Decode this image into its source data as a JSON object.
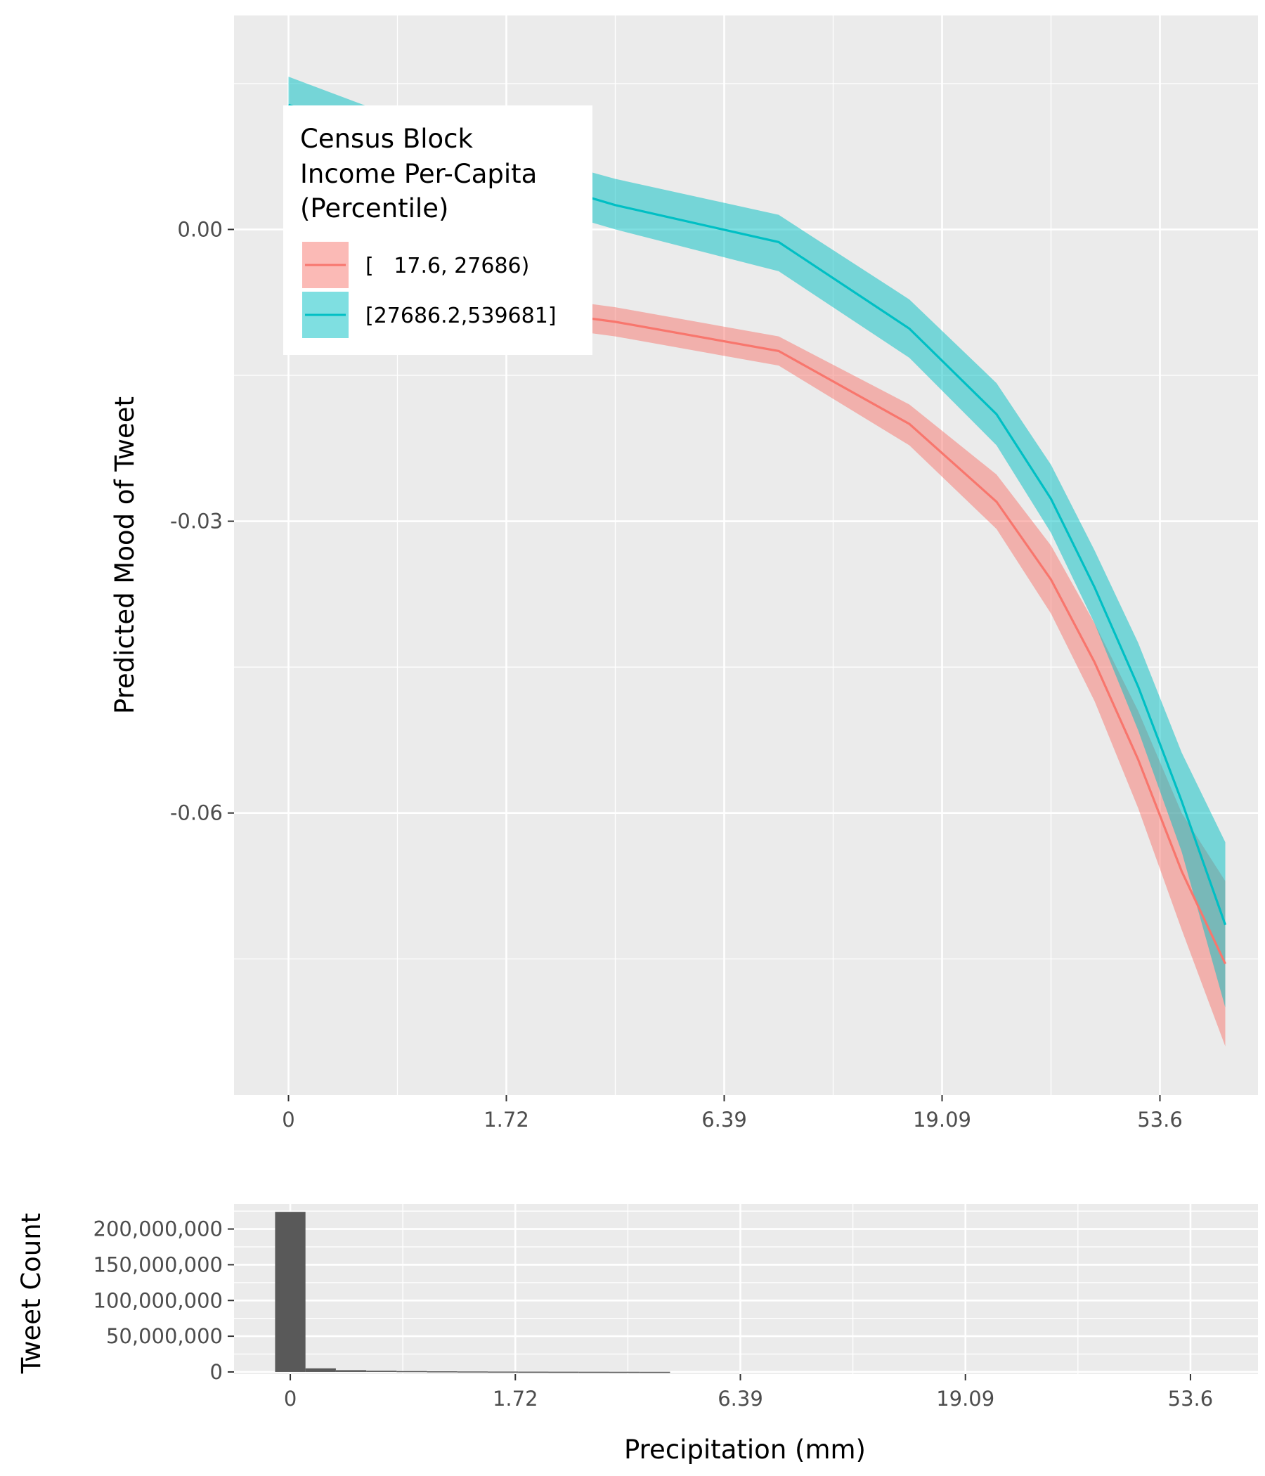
{
  "chart_data": [
    {
      "type": "line",
      "panel": "main",
      "ylabel": "Predicted Mood of Tweet",
      "xlabel": "",
      "x_ticks": [
        "0",
        "1.72",
        "6.39",
        "19.09",
        "53.6"
      ],
      "y_ticks": [
        "0.00",
        "-0.03",
        "-0.06"
      ],
      "ylim": [
        -0.089,
        0.022
      ],
      "xlim": [
        -0.5,
        8.9
      ],
      "grid": true,
      "legend": {
        "title_lines": [
          "Census Block",
          "Income Per-Capita",
          "(Percentile)"
        ],
        "placement": "top-left"
      },
      "x": [
        0,
        1,
        2,
        3,
        4.5,
        5.7,
        6.5,
        7.0,
        7.4,
        7.8,
        8.2,
        8.6
      ],
      "series": [
        {
          "name": "[   17.6, 27686)",
          "color": "#F8766D",
          "fill": "#F8766D",
          "values": [
            0.0,
            -0.0055,
            -0.008,
            -0.0095,
            -0.0125,
            -0.02,
            -0.028,
            -0.036,
            -0.0445,
            -0.0545,
            -0.066,
            -0.0755
          ],
          "lower": [
            -0.0015,
            -0.007,
            -0.0095,
            -0.011,
            -0.014,
            -0.0222,
            -0.0308,
            -0.0395,
            -0.0485,
            -0.0595,
            -0.072,
            -0.084
          ],
          "upper": [
            0.0015,
            -0.004,
            -0.0065,
            -0.008,
            -0.011,
            -0.018,
            -0.0252,
            -0.0325,
            -0.0405,
            -0.0495,
            -0.06,
            -0.067
          ]
        },
        {
          "name": "[27686.2,539681]",
          "color": "#00BFC4",
          "fill": "#00BFC4",
          "values": [
            0.0128,
            0.009,
            0.0058,
            0.0025,
            -0.0013,
            -0.0102,
            -0.019,
            -0.0277,
            -0.0368,
            -0.047,
            -0.0588,
            -0.0715
          ],
          "lower": [
            0.01,
            0.0065,
            0.0033,
            0.0,
            -0.0043,
            -0.0132,
            -0.0222,
            -0.0312,
            -0.0405,
            -0.0515,
            -0.064,
            -0.08
          ],
          "upper": [
            0.0157,
            0.0115,
            0.0083,
            0.0052,
            0.0015,
            -0.0072,
            -0.0158,
            -0.0242,
            -0.033,
            -0.0425,
            -0.0538,
            -0.063
          ]
        }
      ]
    },
    {
      "type": "bar",
      "panel": "histogram",
      "ylabel": "Tweet Count",
      "xlabel": "Precipitation (mm)",
      "x_ticks": [
        "0",
        "1.72",
        "6.39",
        "19.09",
        "53.6"
      ],
      "y_ticks": [
        "200,000,000",
        "150,000,000",
        "100,000,000",
        "50,000,000",
        "0"
      ],
      "y_tick_values": [
        200000000,
        150000000,
        100000000,
        50000000,
        0
      ],
      "ylim": [
        -3000000,
        235000000
      ],
      "xlim": [
        -0.5,
        8.6
      ],
      "grid": true,
      "bar_color": "#595959",
      "bins": [
        {
          "x": 0.0,
          "value": 224000000
        },
        {
          "x": 0.27,
          "value": 5000000
        },
        {
          "x": 0.54,
          "value": 2500000
        },
        {
          "x": 0.81,
          "value": 1700000
        },
        {
          "x": 1.08,
          "value": 1200000
        },
        {
          "x": 1.35,
          "value": 900000
        },
        {
          "x": 1.62,
          "value": 700000
        },
        {
          "x": 1.89,
          "value": 550000
        },
        {
          "x": 2.16,
          "value": 450000
        },
        {
          "x": 2.43,
          "value": 380000
        },
        {
          "x": 2.7,
          "value": 320000
        },
        {
          "x": 2.97,
          "value": 260000
        },
        {
          "x": 3.24,
          "value": 220000
        }
      ]
    }
  ]
}
